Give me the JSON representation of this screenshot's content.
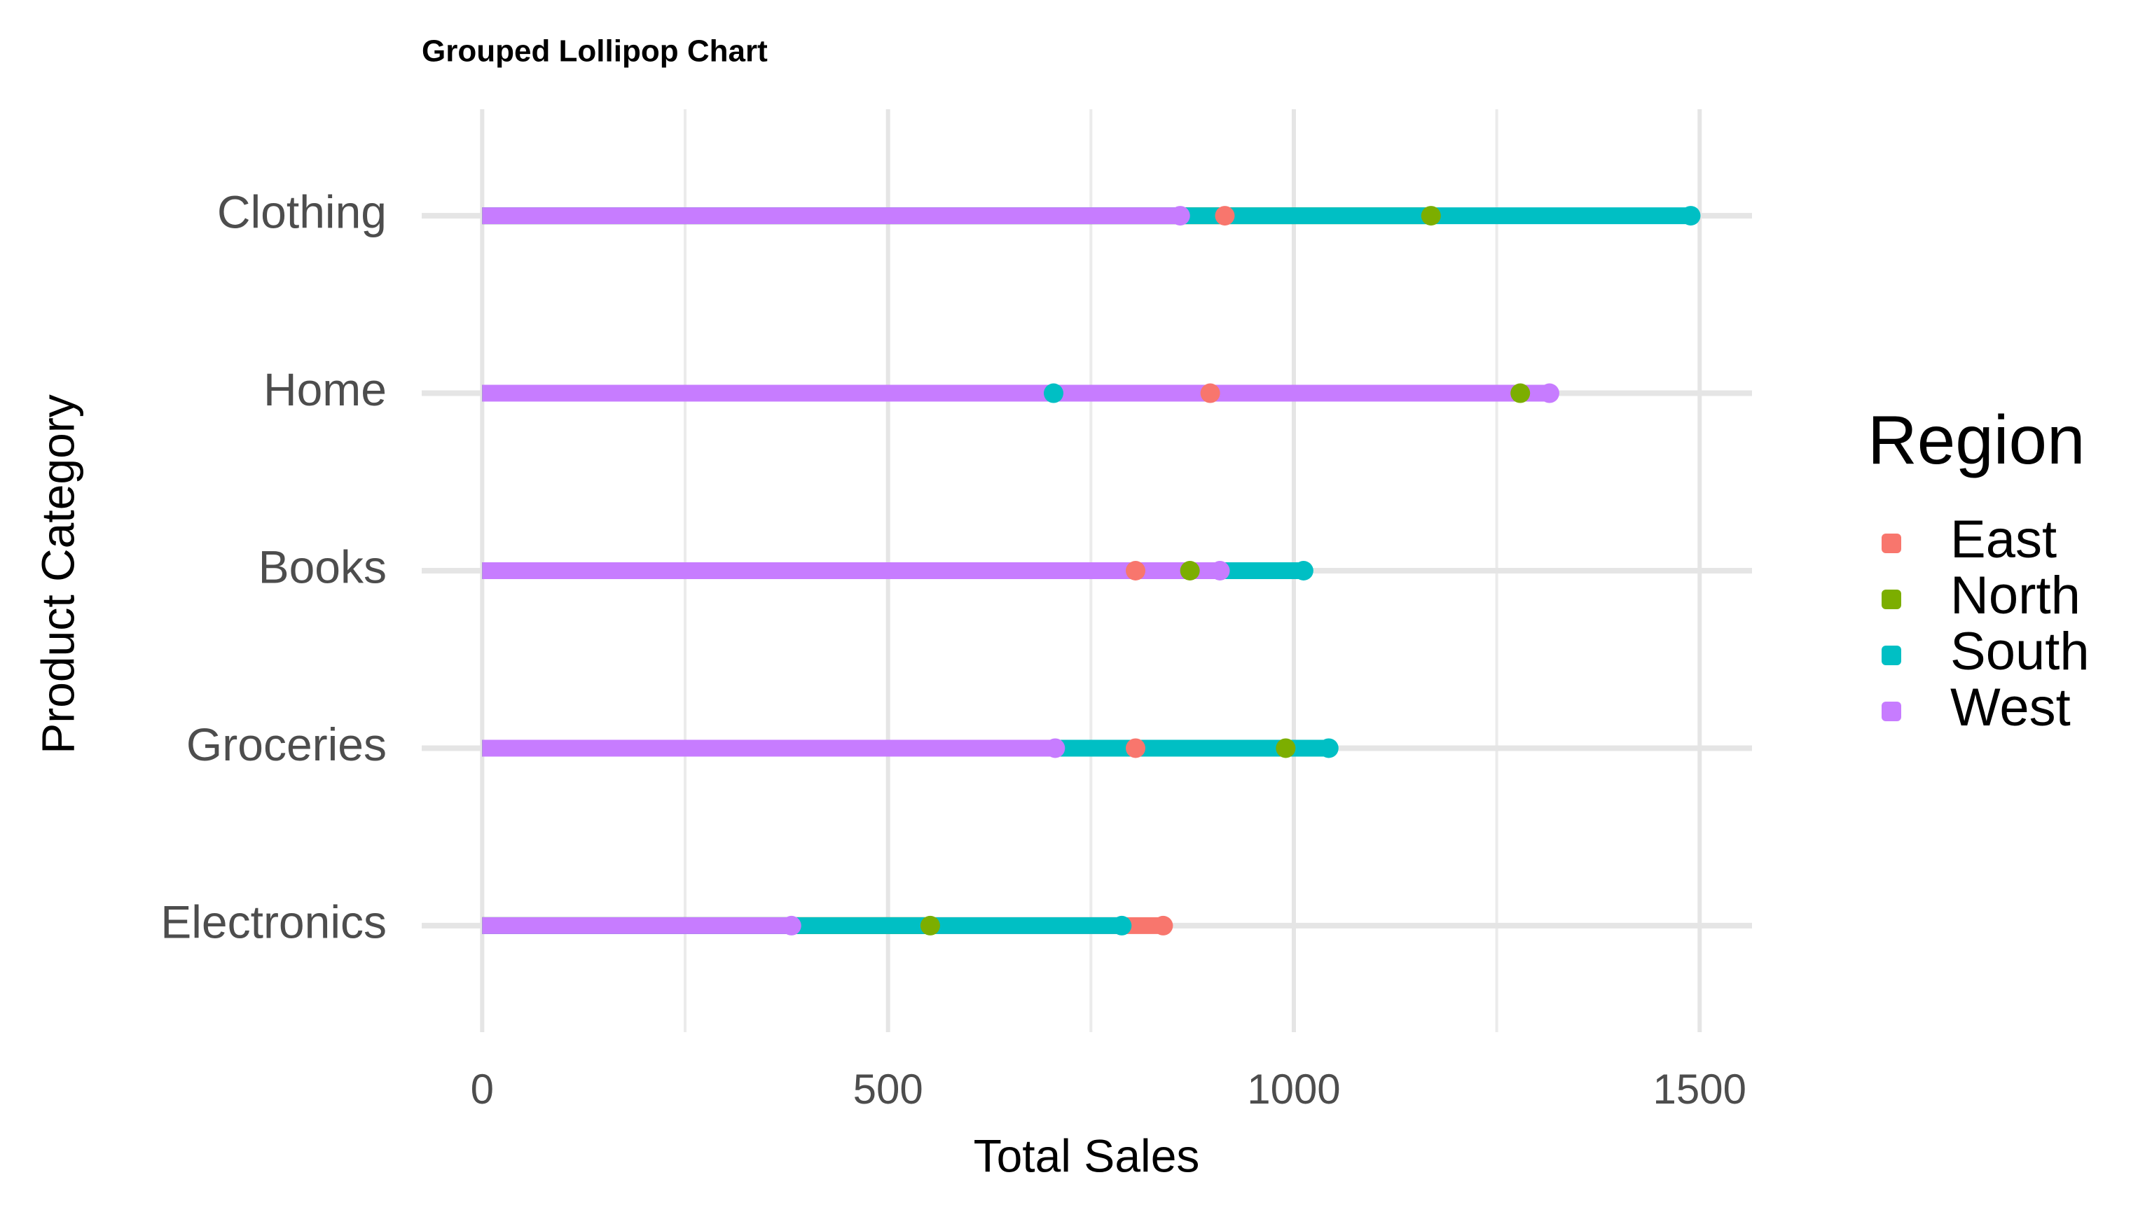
{
  "chart_data": {
    "type": "lollipop",
    "title": "Grouped Lollipop Chart",
    "x_label": "Total Sales",
    "y_label": "Product Category",
    "legend_title": "Region",
    "categories": [
      "Electronics",
      "Groceries",
      "Books",
      "Home",
      "Clothing"
    ],
    "series": [
      {
        "name": "East",
        "color": "#F8766D",
        "values": [
          839,
          805,
          805,
          897,
          915
        ]
      },
      {
        "name": "North",
        "color": "#7CAE00",
        "values": [
          552,
          990,
          872,
          1279,
          1169
        ]
      },
      {
        "name": "South",
        "color": "#00BFC4",
        "values": [
          788,
          1043,
          1012,
          704,
          1489
        ]
      },
      {
        "name": "West",
        "color": "#C77CFF",
        "values": [
          381,
          706,
          909,
          1315,
          860
        ]
      }
    ],
    "xlim": [
      -74.5,
      1564.5
    ],
    "xticks": [
      0,
      500,
      1000,
      1500
    ],
    "xminor": [
      250,
      750,
      1250
    ],
    "grid": true,
    "legend": "right"
  }
}
